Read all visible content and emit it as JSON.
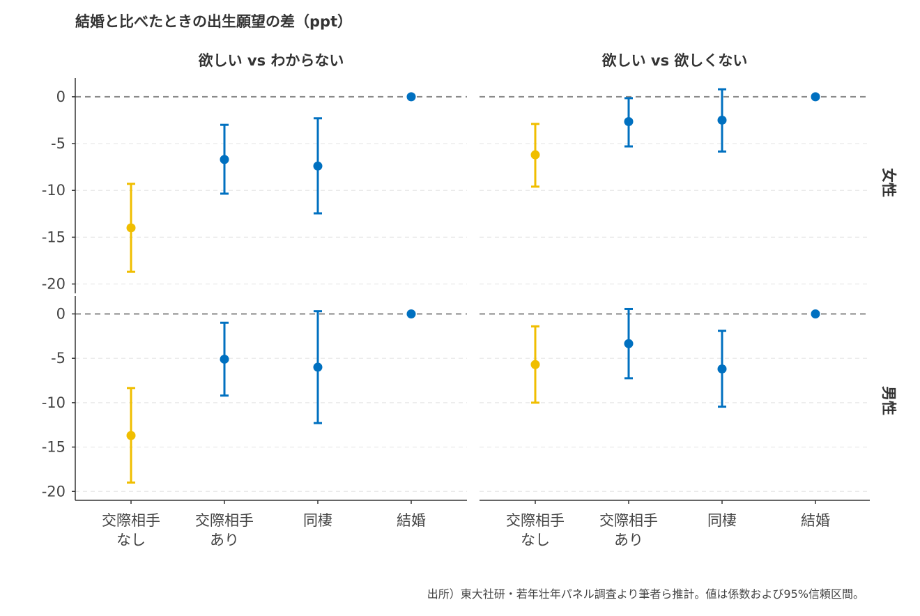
{
  "chart_data": {
    "type": "errorbar",
    "title": "結婚と比べたときの出生願望の差（ppt）",
    "caption": "出所）東大社研・若年壮年パネル調査より筆者ら推計。値は係数および95%信頼区間。",
    "categories": [
      [
        "交際相手",
        "なし"
      ],
      [
        "交際相手",
        "あり"
      ],
      [
        "同棲"
      ],
      [
        "結婚"
      ]
    ],
    "category_colors": [
      "#F0BE00",
      "#0070C0",
      "#0070C0",
      "#0070C0"
    ],
    "ylim": [
      -21,
      2
    ],
    "yticks": [
      0,
      -5,
      -10,
      -15,
      -20
    ],
    "reference_line": 0,
    "grid": "horizontal dashed",
    "columns": [
      "欲しい vs わからない",
      "欲しい vs 欲しくない"
    ],
    "rows": [
      "女性",
      "男性"
    ],
    "panels": [
      {
        "row": "女性",
        "column": "欲しい vs わからない",
        "estimate": [
          -14.0,
          -6.7,
          -7.4,
          0
        ],
        "lower": [
          -18.7,
          -10.35,
          -12.45,
          null
        ],
        "upper": [
          -9.3,
          -3.0,
          -2.3,
          null
        ]
      },
      {
        "row": "女性",
        "column": "欲しい vs 欲しくない",
        "estimate": [
          -6.2,
          -2.65,
          -2.5,
          0
        ],
        "lower": [
          -9.6,
          -5.3,
          -5.85,
          null
        ],
        "upper": [
          -2.9,
          -0.15,
          0.8,
          null
        ]
      },
      {
        "row": "男性",
        "column": "欲しい vs わからない",
        "estimate": [
          -13.7,
          -5.1,
          -6.0,
          0
        ],
        "lower": [
          -19.0,
          -9.2,
          -12.3,
          null
        ],
        "upper": [
          -8.35,
          -1.0,
          0.3,
          null
        ]
      },
      {
        "row": "男性",
        "column": "欲しい vs 欲しくない",
        "estimate": [
          -5.7,
          -3.35,
          -6.2,
          0
        ],
        "lower": [
          -10.0,
          -7.25,
          -10.45,
          null
        ],
        "upper": [
          -1.4,
          0.55,
          -1.9,
          null
        ]
      }
    ]
  }
}
